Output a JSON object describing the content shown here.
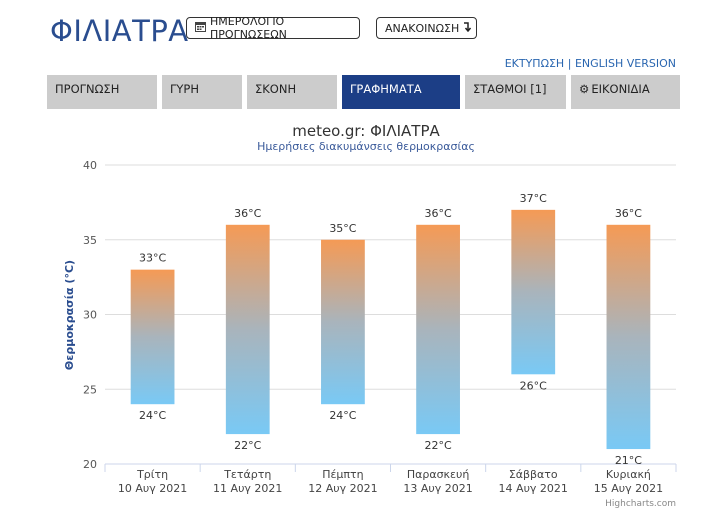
{
  "header": {
    "site_title": "ΦΙΛΙΑΤΡΑ",
    "calendar_button": "ΗΜΕΡΟΛΟΓΙΟ ΠΡΟΓΝΩΣΕΩΝ",
    "announcement_button": "ΑΝΑΚΟΙΝΩΣΗ",
    "print_link": "ΕΚΤΥΠΩΣΗ",
    "separator": "|",
    "english_link": "ENGLISH VERSION"
  },
  "tabs": [
    {
      "label": "ΠΡΟΓΝΩΣΗ",
      "active": false
    },
    {
      "label": "ΓΥΡΗ",
      "active": false
    },
    {
      "label": "ΣΚΟΝΗ",
      "active": false
    },
    {
      "label": "ΓΡΑΦΗΜΑΤΑ",
      "active": true
    },
    {
      "label": "ΣΤΑΘΜΟΙ [1]",
      "active": false
    },
    {
      "label": "ΕΙΚΟΝΙΔΙΑ",
      "active": false
    }
  ],
  "chart_data": {
    "type": "bar",
    "title": "meteo.gr: ΦΙΛΙΑΤΡΑ",
    "subtitle": "Ημερήσιες διακυμάνσεις θερμοκρασίας",
    "ylabel": "Θερμοκρασία (°C)",
    "ylim": [
      20,
      40
    ],
    "yticks": [
      20,
      25,
      30,
      35,
      40
    ],
    "categories": [
      {
        "day": "Τρίτη",
        "date": "10 Αυγ 2021"
      },
      {
        "day": "Τετάρτη",
        "date": "11 Αυγ 2021"
      },
      {
        "day": "Πέμπτη",
        "date": "12 Αυγ 2021"
      },
      {
        "day": "Παρασκευή",
        "date": "13 Αυγ 2021"
      },
      {
        "day": "Σάββατο",
        "date": "14 Αυγ 2021"
      },
      {
        "day": "Κυριακή",
        "date": "15 Αυγ 2021"
      }
    ],
    "min": [
      24,
      22,
      24,
      22,
      26,
      21
    ],
    "max": [
      33,
      36,
      35,
      36,
      37,
      36
    ],
    "unit": "°C",
    "grid": true,
    "colors": {
      "high": "#f59a55",
      "mid": "#a9b4bc",
      "low": "#79c9f5"
    },
    "credits": "Highcharts.com"
  },
  "colors": {
    "brand": "#2a4d8f",
    "active_tab": "#1c3e86",
    "tab": "#cccccc"
  }
}
